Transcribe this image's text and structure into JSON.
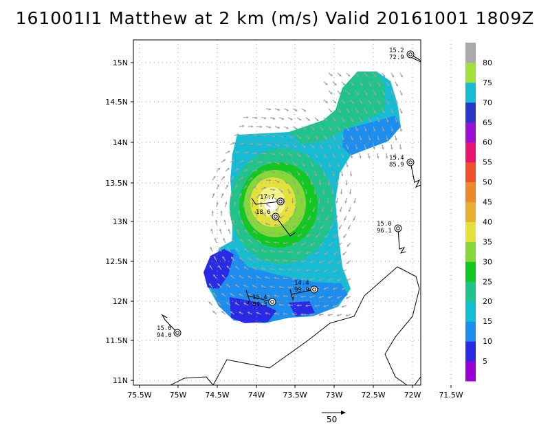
{
  "title": "161001I1 Matthew at 2 km (m/s) Valid 20161001  1809Z",
  "axes": {
    "lon_ticks": [
      "75.5W",
      "75W",
      "74.5W",
      "74W",
      "73.5W",
      "73W",
      "72.5W",
      "72W",
      "71.5W"
    ],
    "lat_ticks": [
      "15N",
      "14.5N",
      "14N",
      "13.5N",
      "13N",
      "12.5N",
      "12N",
      "11.5N",
      "11N"
    ]
  },
  "colorbar": {
    "labels": [
      "5",
      "10",
      "15",
      "20",
      "25",
      "30",
      "35",
      "40",
      "45",
      "50",
      "55",
      "60",
      "65",
      "70",
      "75",
      "80"
    ],
    "colors": [
      "#9a00d6",
      "#2a2ae6",
      "#1c8ef0",
      "#10c0d2",
      "#20c48a",
      "#10c820",
      "#86d838",
      "#e4e23a",
      "#e8b030",
      "#ec8a2a",
      "#f0502a",
      "#e8166e",
      "#9a10d0",
      "#2838c8",
      "#16bcd4",
      "#9fe03a",
      "#aaaaaa"
    ]
  },
  "stations": [
    {
      "speed": "15.2",
      "pressure": "72.9"
    },
    {
      "speed": "15.4",
      "pressure": "85.9"
    },
    {
      "speed": "15.0",
      "pressure": "96.1"
    },
    {
      "speed": "14.4",
      "pressure": "99.9"
    },
    {
      "speed": "15.4",
      "pressure": "84.3"
    },
    {
      "speed": "15.0",
      "pressure": "94.0"
    },
    {
      "speed": "17.7",
      "pressure": ""
    },
    {
      "speed": "18.6",
      "pressure": ""
    }
  ],
  "scale": {
    "value": "50"
  },
  "colors": {
    "frame": "#000000",
    "grid": "#9a9a9a",
    "vector": "#a0a0a0",
    "coast": "#000000"
  }
}
